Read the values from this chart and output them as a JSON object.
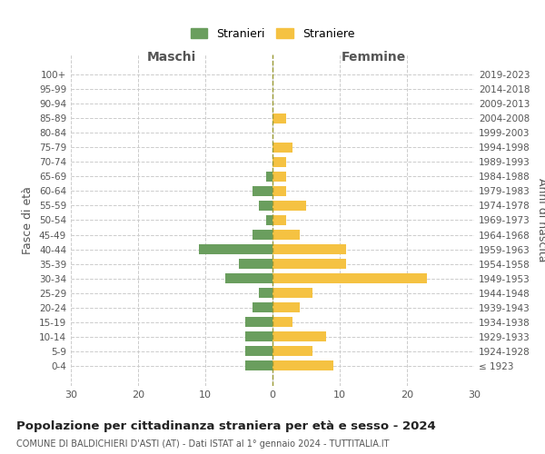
{
  "age_groups": [
    "100+",
    "95-99",
    "90-94",
    "85-89",
    "80-84",
    "75-79",
    "70-74",
    "65-69",
    "60-64",
    "55-59",
    "50-54",
    "45-49",
    "40-44",
    "35-39",
    "30-34",
    "25-29",
    "20-24",
    "15-19",
    "10-14",
    "5-9",
    "0-4"
  ],
  "birth_years": [
    "≤ 1923",
    "1924-1928",
    "1929-1933",
    "1934-1938",
    "1939-1943",
    "1944-1948",
    "1949-1953",
    "1954-1958",
    "1959-1963",
    "1964-1968",
    "1969-1973",
    "1974-1978",
    "1979-1983",
    "1984-1988",
    "1989-1993",
    "1994-1998",
    "1999-2003",
    "2004-2008",
    "2009-2013",
    "2014-2018",
    "2019-2023"
  ],
  "males": [
    0,
    0,
    0,
    0,
    0,
    0,
    0,
    1,
    3,
    2,
    1,
    3,
    11,
    5,
    7,
    2,
    3,
    4,
    4,
    4,
    4
  ],
  "females": [
    0,
    0,
    0,
    2,
    0,
    3,
    2,
    2,
    2,
    5,
    2,
    4,
    11,
    11,
    23,
    6,
    4,
    3,
    8,
    6,
    9
  ],
  "male_color": "#6a9e5e",
  "female_color": "#f5c242",
  "title": "Popolazione per cittadinanza straniera per età e sesso - 2024",
  "subtitle": "COMUNE DI BALDICHIERI D'ASTI (AT) - Dati ISTAT al 1° gennaio 2024 - TUTTITALIA.IT",
  "ylabel_left": "Fasce di età",
  "ylabel_right": "Anni di nascita",
  "xlabel_left": "Maschi",
  "xlabel_right": "Femmine",
  "legend_stranieri": "Stranieri",
  "legend_straniere": "Straniere",
  "xlim": 30,
  "background_color": "#ffffff",
  "grid_color": "#cccccc"
}
